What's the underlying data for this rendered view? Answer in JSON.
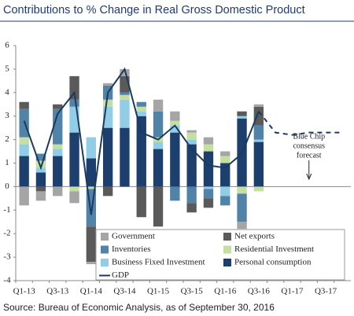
{
  "chart_data": {
    "type": "stacked-bar-line",
    "title": "Contributions to % Change in Real Gross Domestic Product",
    "source": "Source: Bureau of Economic Analysis, as of September 30, 2016",
    "categories": [
      "Q1-13",
      null,
      "Q3-13",
      null,
      "Q1-14",
      null,
      "Q3-14",
      null,
      "Q1-15",
      null,
      "Q3-15",
      null,
      "Q1-16",
      null,
      "Q3-16",
      null,
      "Q1-17",
      null,
      "Q3-17",
      null
    ],
    "ylim": [
      -4,
      6
    ],
    "yticks": [
      -4,
      -3,
      -2,
      -1,
      0,
      1,
      2,
      3,
      4,
      5,
      6
    ],
    "grid": false,
    "series": [
      {
        "name": "Government",
        "color": "#a5a5a5",
        "values": [
          -0.8,
          -0.4,
          -0.4,
          -0.5,
          -0.1,
          0.1,
          0.3,
          0.0,
          0.5,
          0.4,
          0.1,
          0.3,
          0.2,
          -0.3,
          0.1,
          null,
          null,
          null,
          null,
          null
        ]
      },
      {
        "name": "Net exports",
        "color": "#5a5a5a",
        "values": [
          0.3,
          -0.2,
          0.2,
          1.0,
          -1.5,
          -0.4,
          0.7,
          -1.3,
          -1.7,
          0.0,
          -0.4,
          -0.4,
          0.0,
          0.2,
          0.8,
          null,
          null,
          null,
          null,
          null
        ]
      },
      {
        "name": "Inventories",
        "color": "#5182a8",
        "values": [
          1.2,
          0.3,
          1.5,
          0.3,
          -1.6,
          0.6,
          0.1,
          0.2,
          1.1,
          -0.6,
          -0.7,
          -0.4,
          -0.4,
          -1.2,
          0.6,
          null,
          null,
          null,
          null,
          null
        ]
      },
      {
        "name": "Residential Investment",
        "color": "#c4df9f",
        "values": [
          0.3,
          0.3,
          0.2,
          -0.2,
          -0.1,
          0.3,
          0.2,
          0.2,
          0.2,
          0.2,
          0.3,
          0.3,
          0.3,
          -0.3,
          -0.2,
          null,
          null,
          null,
          null,
          null
        ]
      },
      {
        "name": "Business Fixed Investment",
        "color": "#92cde8",
        "values": [
          0.5,
          0.2,
          0.3,
          1.1,
          0.9,
          0.9,
          1.2,
          0.2,
          0.3,
          0.3,
          0.2,
          -0.1,
          -0.4,
          0.1,
          0.1,
          null,
          null,
          null,
          null,
          null
        ]
      },
      {
        "name": "Personal consumption",
        "color": "#1c3f6e",
        "values": [
          1.3,
          0.6,
          1.3,
          2.3,
          1.2,
          2.5,
          2.5,
          3.0,
          1.6,
          2.3,
          1.8,
          1.5,
          1.0,
          2.9,
          1.9,
          null,
          null,
          null,
          null,
          null
        ]
      }
    ],
    "line": {
      "name": "GDP",
      "color": "#1c3a5e",
      "values": [
        2.8,
        0.8,
        3.1,
        4.0,
        -1.2,
        4.0,
        5.0,
        2.3,
        2.0,
        2.6,
        1.6,
        0.9,
        0.8,
        1.4,
        3.2,
        null,
        null,
        null,
        null,
        null
      ]
    },
    "forecast": {
      "color": "#1c3a5e",
      "dashed": true,
      "values": [
        null,
        null,
        null,
        null,
        null,
        null,
        null,
        null,
        null,
        null,
        null,
        null,
        null,
        null,
        3.2,
        2.3,
        2.2,
        2.3,
        2.3,
        2.3
      ]
    },
    "annotation": [
      "Blue Chip",
      "consensus",
      "forecast"
    ]
  }
}
